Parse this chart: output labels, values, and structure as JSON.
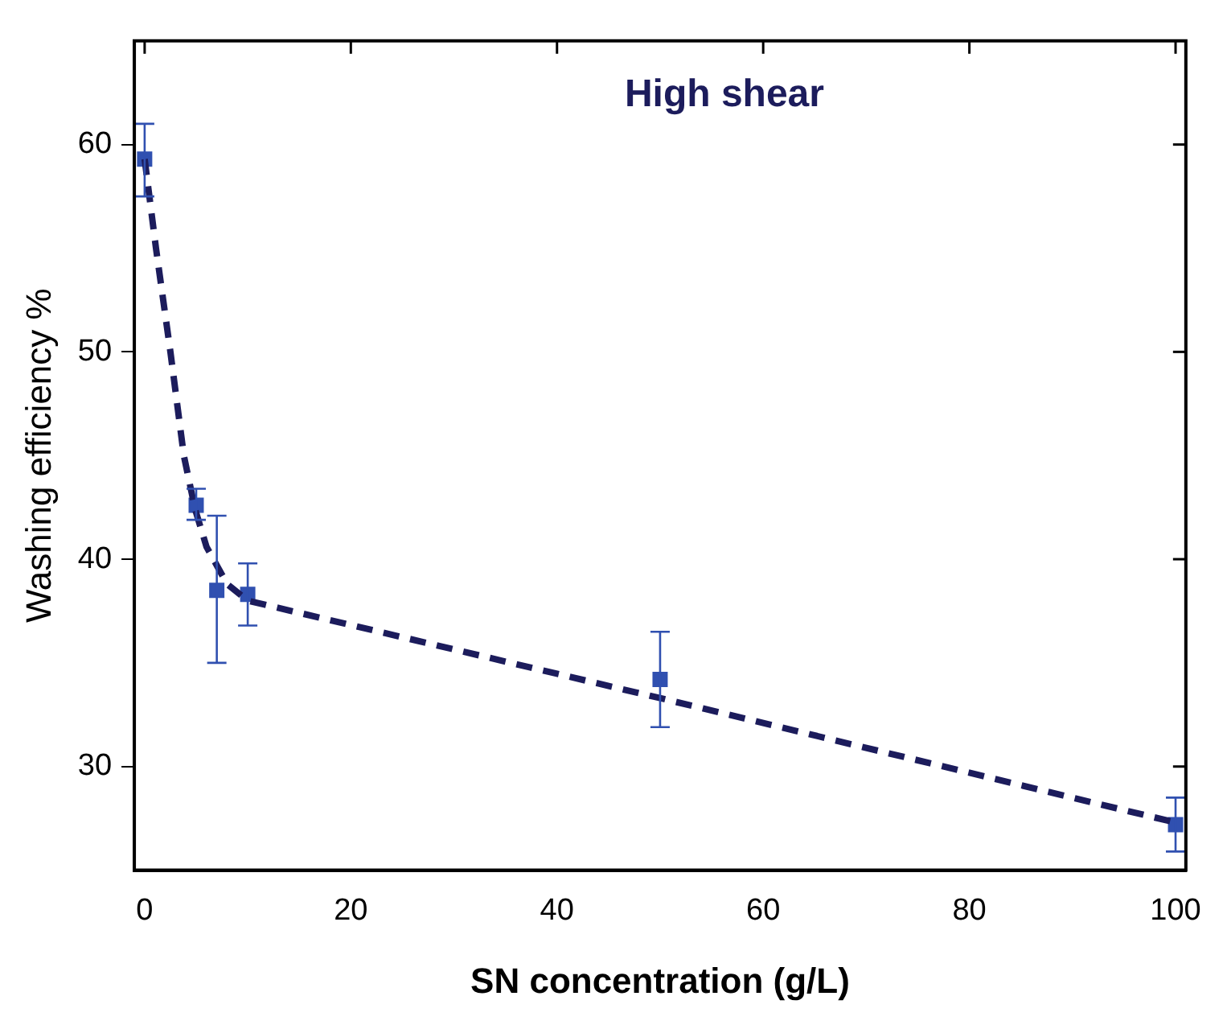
{
  "chart_data": {
    "type": "scatter",
    "title": "High shear",
    "xlabel": "SN concentration (g/L)",
    "ylabel": "Washing efficiency %",
    "xlim": [
      -1,
      101
    ],
    "xticks": [
      0,
      20,
      40,
      60,
      80,
      100
    ],
    "ylim": [
      25,
      65
    ],
    "yticks": [
      30,
      40,
      50,
      60
    ],
    "grid": false,
    "legend": false,
    "series": [
      {
        "type": "scatter",
        "color": "#3050b0",
        "marker": "square",
        "x": [
          0,
          5,
          7,
          10,
          50,
          100
        ],
        "values": [
          59.3,
          42.6,
          38.5,
          38.3,
          34.2,
          27.2
        ],
        "errors": [
          [
            57.5,
            61
          ],
          [
            41.9,
            43.4
          ],
          [
            35,
            42.1
          ],
          [
            36.8,
            39.8
          ],
          [
            31.9,
            36.5
          ],
          [
            25.9,
            28.5
          ]
        ]
      },
      {
        "type": "line",
        "color": "#1c1c5c",
        "marker": "none",
        "line_style": "dashed",
        "x": [
          0,
          1.1,
          2.5,
          3.8,
          4.9,
          6,
          8,
          10,
          50,
          100
        ],
        "values": [
          59.3,
          55,
          50,
          45,
          42.4,
          40.6,
          38.8,
          38,
          33.3,
          27.3
        ]
      }
    ]
  }
}
